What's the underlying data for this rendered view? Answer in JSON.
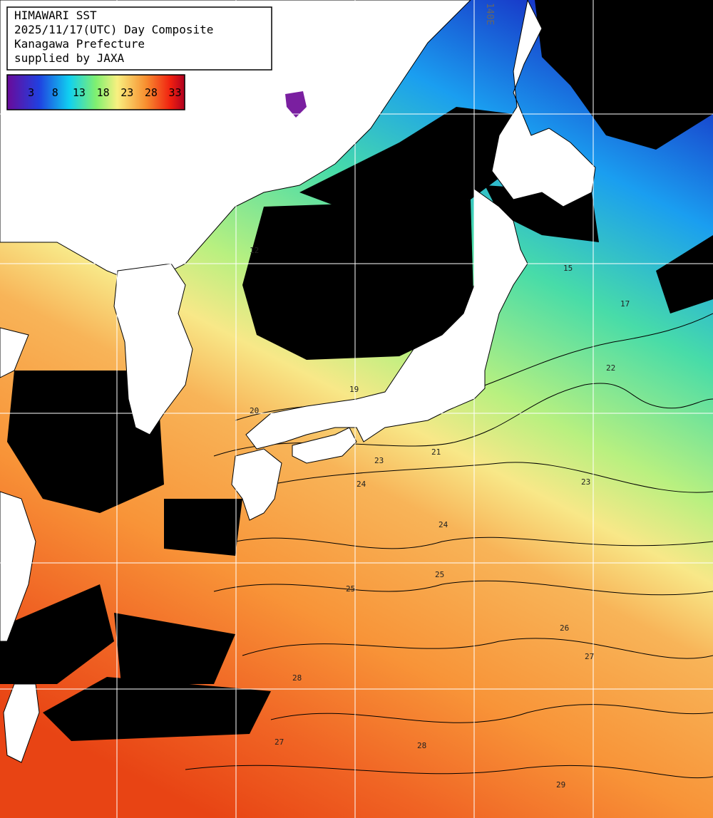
{
  "header": {
    "lines": [
      "HIMAWARI SST",
      "2025/11/17(UTC) Day Composite",
      "Kanagawa Prefecture",
      "supplied by JAXA"
    ]
  },
  "colorbar": {
    "ticks": [
      3,
      8,
      13,
      18,
      23,
      28,
      33
    ],
    "lim": [
      -2,
      35
    ]
  },
  "grid_labels": [
    "140E"
  ],
  "contour_labels": [
    12,
    15,
    17,
    19,
    20,
    21,
    22,
    23,
    23,
    24,
    24,
    25,
    25,
    26,
    27,
    27,
    28,
    28,
    29
  ]
}
